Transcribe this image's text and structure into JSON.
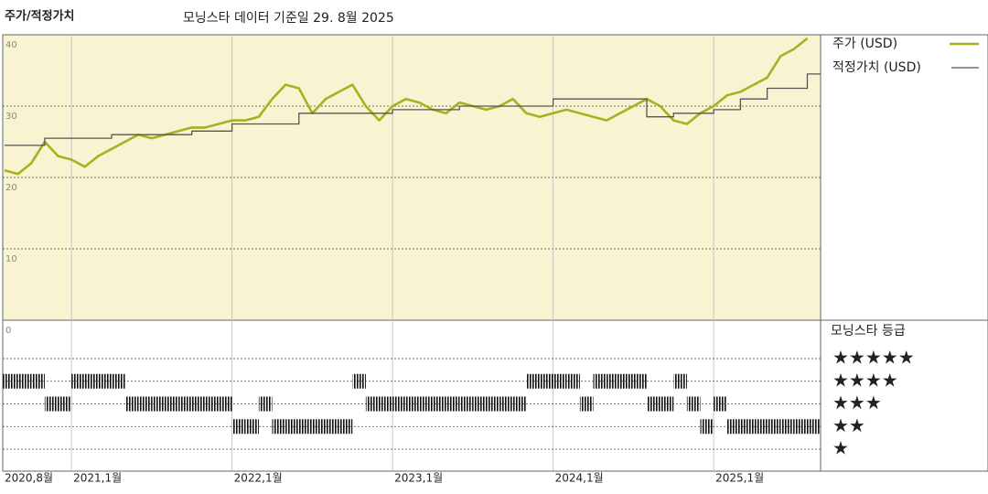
{
  "chart_data": {
    "type": "line",
    "title": "주가/적정가치",
    "subtitle": "모닝스타 데이터 기준일 29. 8월 2025",
    "x": [
      "2020-08",
      "2020-09",
      "2020-10",
      "2020-11",
      "2020-12",
      "2021-01",
      "2021-02",
      "2021-03",
      "2021-04",
      "2021-05",
      "2021-06",
      "2021-07",
      "2021-08",
      "2021-09",
      "2021-10",
      "2021-11",
      "2021-12",
      "2022-01",
      "2022-02",
      "2022-03",
      "2022-04",
      "2022-05",
      "2022-06",
      "2022-07",
      "2022-08",
      "2022-09",
      "2022-10",
      "2022-11",
      "2022-12",
      "2023-01",
      "2023-02",
      "2023-03",
      "2023-04",
      "2023-05",
      "2023-06",
      "2023-07",
      "2023-08",
      "2023-09",
      "2023-10",
      "2023-11",
      "2023-12",
      "2024-01",
      "2024-02",
      "2024-03",
      "2024-04",
      "2024-05",
      "2024-06",
      "2024-07",
      "2024-08",
      "2024-09",
      "2024-10",
      "2024-11",
      "2024-12",
      "2025-01",
      "2025-02",
      "2025-03",
      "2025-04",
      "2025-05",
      "2025-06",
      "2025-07",
      "2025-08"
    ],
    "series": [
      {
        "name": "주가 (USD)",
        "color": "#aab020",
        "values": [
          21,
          20.5,
          22,
          25,
          23,
          22.5,
          21.5,
          23,
          24,
          25,
          26,
          25.5,
          26,
          26.5,
          27,
          27,
          27.5,
          28,
          28,
          28.5,
          31,
          33,
          32.5,
          29,
          31,
          32,
          33,
          30,
          28,
          30,
          31,
          30.5,
          29.5,
          29,
          30.5,
          30,
          29.5,
          30,
          31,
          29,
          28.5,
          29,
          29.5,
          29,
          28.5,
          28,
          29,
          30,
          31,
          30,
          28,
          27.5,
          29,
          30,
          31.5,
          32,
          33,
          34,
          37,
          38,
          39.5
        ]
      },
      {
        "name": "적정가치 (USD)",
        "color": "#555555",
        "step": true,
        "values": [
          24.5,
          24.5,
          24.5,
          25.5,
          25.5,
          25.5,
          25.5,
          25.5,
          26,
          26,
          26,
          26,
          26,
          26,
          26.5,
          26.5,
          26.5,
          27.5,
          27.5,
          27.5,
          27.5,
          27.5,
          29,
          29,
          29,
          29,
          29,
          29,
          29,
          29.5,
          29.5,
          29.5,
          29.5,
          29.5,
          30,
          30,
          30,
          30,
          30,
          30,
          30,
          31,
          31,
          31,
          31,
          31,
          31,
          31,
          28.5,
          28.5,
          29,
          29,
          29,
          29.5,
          29.5,
          31,
          31,
          32.5,
          32.5,
          32.5,
          34.5
        ]
      }
    ],
    "ylim": [
      0,
      40
    ],
    "yticks": [
      0,
      10,
      20,
      30,
      40
    ],
    "xticks": [
      {
        "value": "2020-08",
        "label": "2020,8월"
      },
      {
        "value": "2021-01",
        "label": "2021,1월"
      },
      {
        "value": "2022-01",
        "label": "2022,1월"
      },
      {
        "value": "2023-01",
        "label": "2023,1월"
      },
      {
        "value": "2024-01",
        "label": "2024,1월"
      },
      {
        "value": "2025-01",
        "label": "2025,1월"
      }
    ],
    "grid": true,
    "background": "#f8f4d2",
    "rating": {
      "title": "모닝스타 등급",
      "levels": [
        {
          "value": 5,
          "label": "★★★★★"
        },
        {
          "value": 4,
          "label": "★★★★"
        },
        {
          "value": 3,
          "label": "★★★"
        },
        {
          "value": 2,
          "label": "★★"
        },
        {
          "value": 1,
          "label": "★"
        }
      ],
      "values": [
        4,
        4,
        4,
        3,
        3,
        4,
        4,
        4,
        4,
        3,
        3,
        3,
        3,
        3,
        3,
        3,
        3,
        2,
        2,
        3,
        2,
        2,
        2,
        2,
        2,
        2,
        4,
        3,
        3,
        3,
        3,
        3,
        3,
        3,
        3,
        3,
        3,
        3,
        3,
        4,
        4,
        4,
        4,
        3,
        4,
        4,
        4,
        4,
        3,
        3,
        4,
        3,
        2,
        3,
        2,
        2,
        2,
        2,
        2,
        2,
        2
      ]
    }
  }
}
